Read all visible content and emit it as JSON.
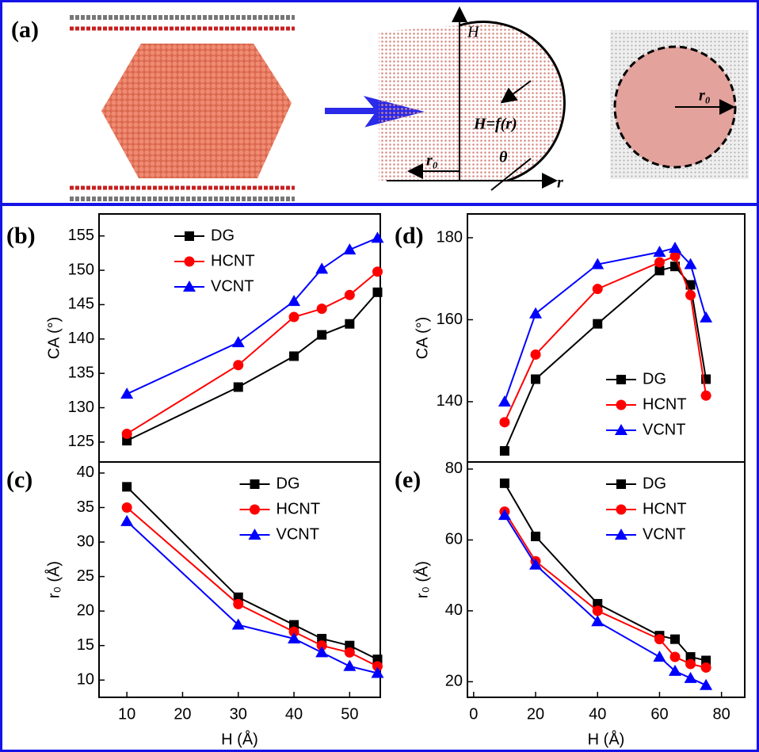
{
  "panel_a": {
    "label": "(a)",
    "axis_h": "H",
    "curve": "H=f(r)",
    "angle": "θ",
    "axis_r": "r",
    "radius_side": "r₀",
    "radius_top": "r₀"
  },
  "chart_data": [
    {
      "type": "line",
      "panel_label": "(b)",
      "y_label": "CA (°)",
      "x": [
        10,
        30,
        40,
        45,
        50,
        55
      ],
      "series": [
        {
          "name": "DG",
          "color": "#000000",
          "marker": "square",
          "values": [
            125.2,
            133,
            137.5,
            140.6,
            142.2,
            146.8
          ]
        },
        {
          "name": "HCNT",
          "color": "#ff0000",
          "marker": "circle",
          "values": [
            126.2,
            136.2,
            143.2,
            144.4,
            146.4,
            149.8
          ]
        },
        {
          "name": "VCNT",
          "color": "#0000ff",
          "marker": "triangle",
          "values": [
            132,
            139.5,
            145.5,
            150.2,
            153,
            154.7
          ]
        }
      ],
      "xlim": [
        5,
        55.5
      ],
      "ylim": [
        122.1,
        158.2
      ],
      "yticks": [
        125,
        130,
        135,
        140,
        145,
        150,
        155
      ],
      "legend_position": "upper left"
    },
    {
      "type": "line",
      "panel_label": "(c)",
      "y_label": "r₀ (Å)",
      "x_label": "H (Å)",
      "x": [
        10,
        30,
        40,
        45,
        50,
        55
      ],
      "series": [
        {
          "name": "DG",
          "color": "#000000",
          "marker": "square",
          "values": [
            38,
            22,
            18,
            16,
            15,
            13
          ]
        },
        {
          "name": "HCNT",
          "color": "#ff0000",
          "marker": "circle",
          "values": [
            35,
            21,
            17,
            15,
            14,
            12
          ]
        },
        {
          "name": "VCNT",
          "color": "#0000ff",
          "marker": "triangle",
          "values": [
            33,
            18,
            16,
            14,
            12,
            11
          ]
        }
      ],
      "xlim": [
        5,
        55.5
      ],
      "ylim": [
        7.5,
        41.6
      ],
      "xticks": [
        10,
        20,
        30,
        40,
        50
      ],
      "yticks": [
        10,
        15,
        20,
        25,
        30,
        35,
        40
      ],
      "legend_position": "upper right"
    },
    {
      "type": "line",
      "panel_label": "(d)",
      "y_label": "CA (°)",
      "x": [
        10,
        20,
        40,
        60,
        65,
        70,
        75
      ],
      "series": [
        {
          "name": "DG",
          "color": "#000000",
          "marker": "square",
          "values": [
            128,
            145.5,
            159,
            172,
            173,
            168.5,
            145.5
          ]
        },
        {
          "name": "HCNT",
          "color": "#ff0000",
          "marker": "circle",
          "values": [
            135,
            151.5,
            167.5,
            174,
            175.5,
            166,
            141.5
          ]
        },
        {
          "name": "VCNT",
          "color": "#0000ff",
          "marker": "triangle",
          "values": [
            140,
            161.5,
            173.5,
            176.5,
            177.5,
            173.5,
            160.5
          ]
        }
      ],
      "xlim": [
        -2,
        87.5
      ],
      "ylim": [
        125.3,
        185.8
      ],
      "yticks": [
        140,
        160,
        180
      ],
      "legend_position": "lower right"
    },
    {
      "type": "line",
      "panel_label": "(e)",
      "y_label": "r₀ (Å)",
      "x_label": "H (Å)",
      "x": [
        10,
        20,
        40,
        60,
        65,
        70,
        75
      ],
      "series": [
        {
          "name": "DG",
          "color": "#000000",
          "marker": "square",
          "values": [
            76,
            61,
            42,
            33,
            32,
            27,
            26
          ]
        },
        {
          "name": "HCNT",
          "color": "#ff0000",
          "marker": "circle",
          "values": [
            68,
            54,
            40,
            32,
            27,
            25,
            24
          ]
        },
        {
          "name": "VCNT",
          "color": "#0000ff",
          "marker": "triangle",
          "values": [
            67,
            53,
            37,
            27,
            23,
            21,
            19
          ]
        }
      ],
      "xlim": [
        -2,
        87.5
      ],
      "ylim": [
        15.6,
        82
      ],
      "xticks": [
        0,
        20,
        40,
        60,
        80
      ],
      "yticks": [
        20,
        40,
        60,
        80
      ],
      "legend_position": "upper right"
    }
  ]
}
